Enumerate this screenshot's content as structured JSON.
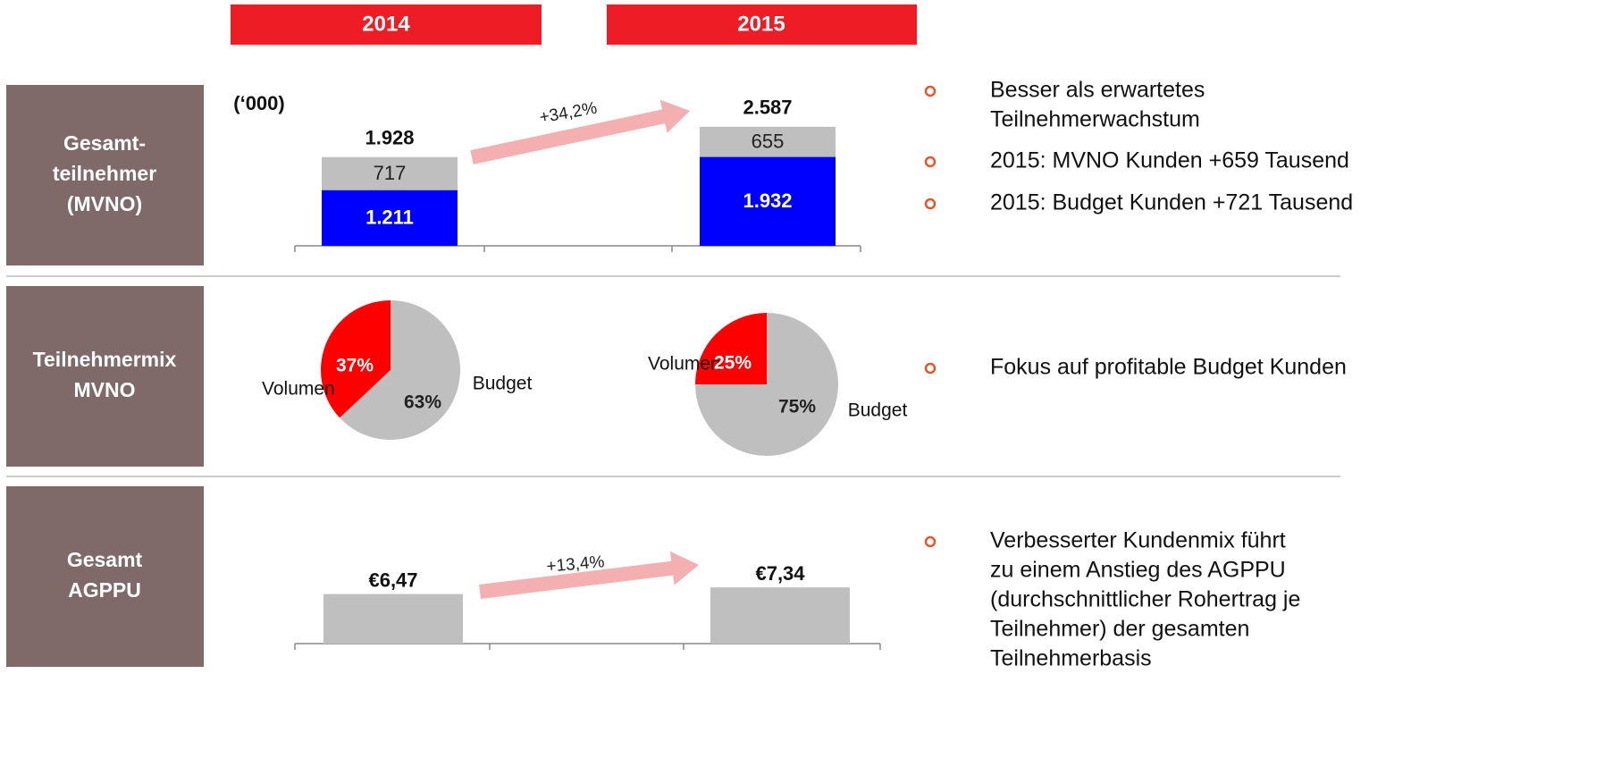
{
  "headers": [
    "2014",
    "2015"
  ],
  "rows": [
    {
      "label": [
        "Gesamt-",
        "teilnehmer",
        "(MVNO)"
      ],
      "bullets": [
        [
          "Besser als erwartetes",
          "Teilnehmerwachstum"
        ],
        [
          "2015: MVNO Kunden +659 Tausend"
        ],
        [
          "2015: Budget Kunden +721 Tausend"
        ]
      ]
    },
    {
      "label": [
        "Teilnehmermix",
        "MVNO"
      ],
      "bullets": [
        [
          "Fokus auf profitable Budget Kunden"
        ]
      ]
    },
    {
      "label": [
        "Gesamt",
        "AGPPU"
      ],
      "bullets": [
        [
          "Verbesserter Kundenmix führt",
          "zu einem Anstieg des AGPPU",
          "(durchschnittlicher Rohertrag je",
          "Teilnehmer) der gesamten",
          "Teilnehmerbasis"
        ]
      ]
    }
  ],
  "chart_data": [
    {
      "type": "bar",
      "unit": "(‘000)",
      "annotation": "+34,2%",
      "ylim": [
        0,
        3400
      ],
      "series": [
        {
          "color": "#0000ff",
          "values": [
            1211,
            1932
          ],
          "value_labels": [
            "1.211",
            "1.932"
          ]
        },
        {
          "color": "#bfbfbf",
          "values": [
            717,
            655
          ]
        }
      ],
      "totals": [
        1928,
        2587
      ],
      "total_labels": [
        "1.928",
        "2.587"
      ]
    },
    {
      "type": "pie",
      "categories": [
        "Volumen",
        "Budget"
      ],
      "values": [
        37,
        63
      ],
      "value_labels": [
        "37%",
        "63%"
      ],
      "colors": [
        "#ff0000",
        "#bfbfbf"
      ]
    },
    {
      "type": "pie",
      "categories": [
        "Volumen",
        "Budget"
      ],
      "values": [
        25,
        75
      ],
      "value_labels": [
        "25%",
        "75%"
      ],
      "colors": [
        "#ff0000",
        "#bfbfbf"
      ]
    },
    {
      "type": "bar",
      "annotation": "+13,4%",
      "ylim": [
        0,
        14
      ],
      "series": [
        {
          "color": "#bfbfbf",
          "values": [
            6.47,
            7.34
          ],
          "value_labels": [
            "€6,47",
            "€7,34"
          ]
        }
      ]
    }
  ]
}
